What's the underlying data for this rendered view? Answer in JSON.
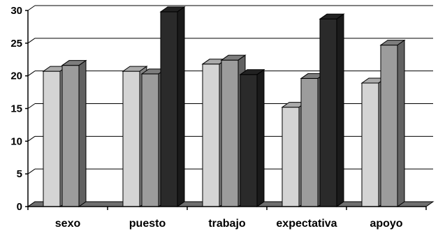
{
  "chart_data": {
    "type": "bar",
    "categories": [
      "sexo",
      "puesto",
      "trabajo",
      "expectativa",
      "apoyo"
    ],
    "series": [
      {
        "values": [
          20.7,
          20.7,
          21.8,
          15.2,
          18.9
        ],
        "color": "#d4d4d4"
      },
      {
        "values": [
          21.6,
          20.3,
          22.4,
          19.6,
          24.7
        ],
        "color": "#9c9c9c"
      },
      {
        "values": [
          null,
          29.8,
          20.2,
          28.7,
          null
        ],
        "color": "#2a2a2a"
      }
    ],
    "ylim": [
      0,
      30
    ],
    "yticks": [
      "0",
      "5",
      "10",
      "15",
      "20",
      "25",
      "30"
    ],
    "grid": true,
    "legend": "none",
    "style": "3d"
  }
}
